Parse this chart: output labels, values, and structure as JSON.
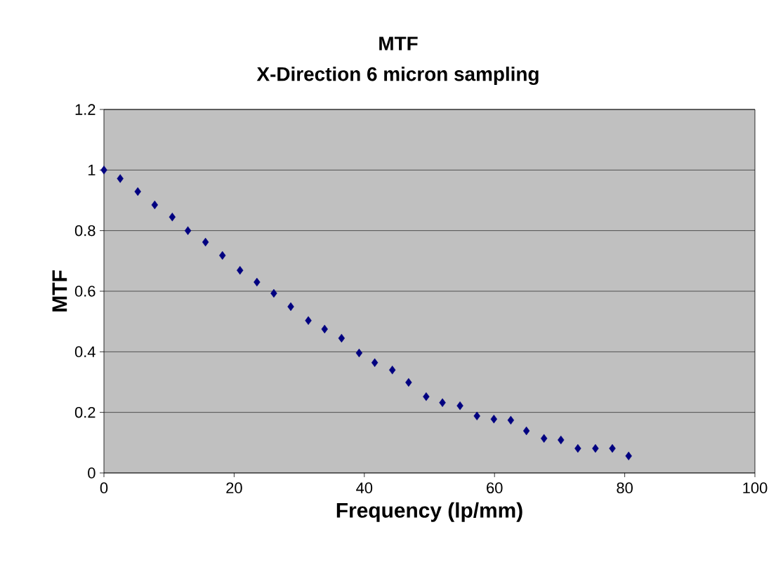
{
  "chart_data": {
    "type": "scatter",
    "title": "MTF",
    "subtitle": "X-Direction   6 micron sampling",
    "xlabel": "Frequency (lp/mm)",
    "ylabel": "MTF",
    "x": [
      0,
      2.5,
      5.2,
      7.8,
      10.5,
      12.9,
      15.6,
      18.2,
      20.9,
      23.5,
      26.1,
      28.7,
      31.4,
      33.9,
      36.5,
      39.2,
      41.6,
      44.3,
      46.8,
      49.5,
      52.0,
      54.7,
      57.3,
      59.9,
      62.5,
      64.9,
      67.6,
      70.2,
      72.8,
      75.5,
      78.1,
      80.6
    ],
    "values": [
      1.0,
      0.972,
      0.929,
      0.885,
      0.845,
      0.8,
      0.762,
      0.718,
      0.669,
      0.63,
      0.593,
      0.549,
      0.503,
      0.475,
      0.445,
      0.396,
      0.364,
      0.34,
      0.299,
      0.252,
      0.232,
      0.222,
      0.188,
      0.178,
      0.174,
      0.139,
      0.114,
      0.109,
      0.081,
      0.081,
      0.081,
      0.056
    ],
    "color": "#000080",
    "marker": "diamond",
    "grid": "y",
    "xlim": [
      0,
      100
    ],
    "ylim": [
      0,
      1.2
    ],
    "xticks": [
      0,
      20,
      40,
      60,
      80,
      100
    ],
    "yticks": [
      0,
      0.2,
      0.4,
      0.6,
      0.8,
      1,
      1.2
    ]
  }
}
